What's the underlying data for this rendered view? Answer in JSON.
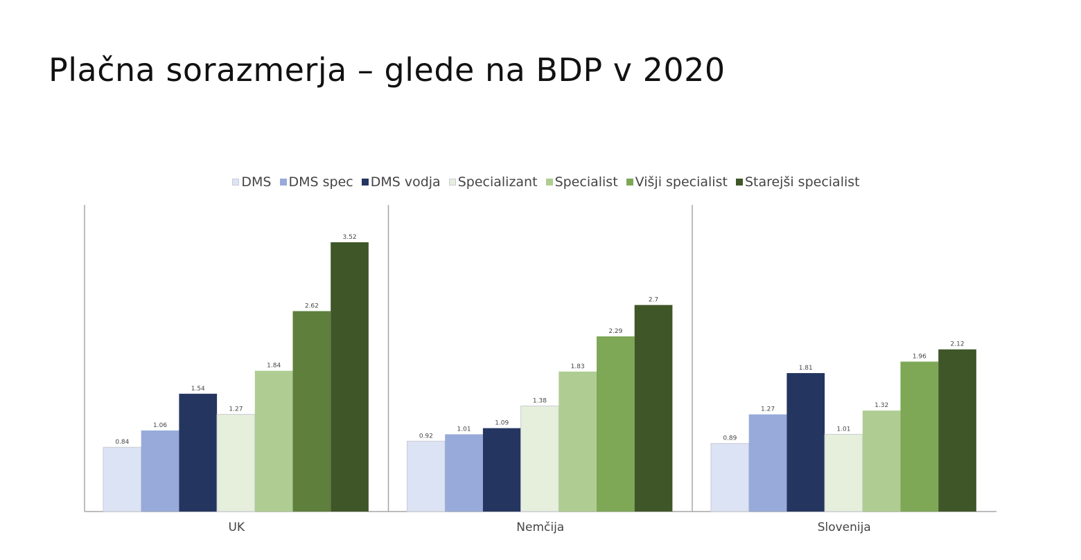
{
  "slide": {
    "title": "Plačna sorazmerja – glede na BDP v 2020"
  },
  "chart_data": {
    "type": "bar",
    "title": "",
    "xlabel": "",
    "ylabel": "",
    "ylim": [
      0,
      4
    ],
    "grid": false,
    "legend_position": "top",
    "categories": [
      "UK",
      "Nemčija",
      "Slovenija"
    ],
    "series": [
      {
        "name": "DMS",
        "color": "#dce3f4",
        "values": [
          0.84,
          0.92,
          0.89
        ],
        "labels": [
          "0.84",
          "0.92",
          "0.89"
        ]
      },
      {
        "name": "DMS spec",
        "color": "#97aad9",
        "values": [
          1.06,
          1.01,
          1.27
        ],
        "labels": [
          "1.06",
          "1.01",
          "1.27"
        ]
      },
      {
        "name": "DMS vodja",
        "color": "#243660",
        "values": [
          1.54,
          1.09,
          1.81
        ],
        "labels": [
          "1.54",
          "1.09",
          "1.81"
        ]
      },
      {
        "name": "Specializant",
        "color": "#e6efdc",
        "values": [
          1.27,
          1.38,
          1.01
        ],
        "labels": [
          "1.27",
          "1.38",
          "1.01"
        ]
      },
      {
        "name": "Specialist",
        "color": "#afcd92",
        "values": [
          1.84,
          1.83,
          1.32
        ],
        "labels": [
          "1.84",
          "1.83",
          "1.32"
        ]
      },
      {
        "name": "Višji specialist",
        "color": "#7ea756",
        "values": [
          2.62,
          2.29,
          1.96
        ],
        "labels": [
          "2.62",
          "2.29",
          "1.96"
        ],
        "group_colors": [
          "#5f7f3c",
          "#7ea756",
          "#7ea756"
        ]
      },
      {
        "name": "Starejši specialist",
        "color": "#3f5628",
        "values": [
          3.52,
          2.7,
          2.12
        ],
        "labels": [
          "3.52",
          "2.7",
          "2.12"
        ]
      }
    ]
  }
}
